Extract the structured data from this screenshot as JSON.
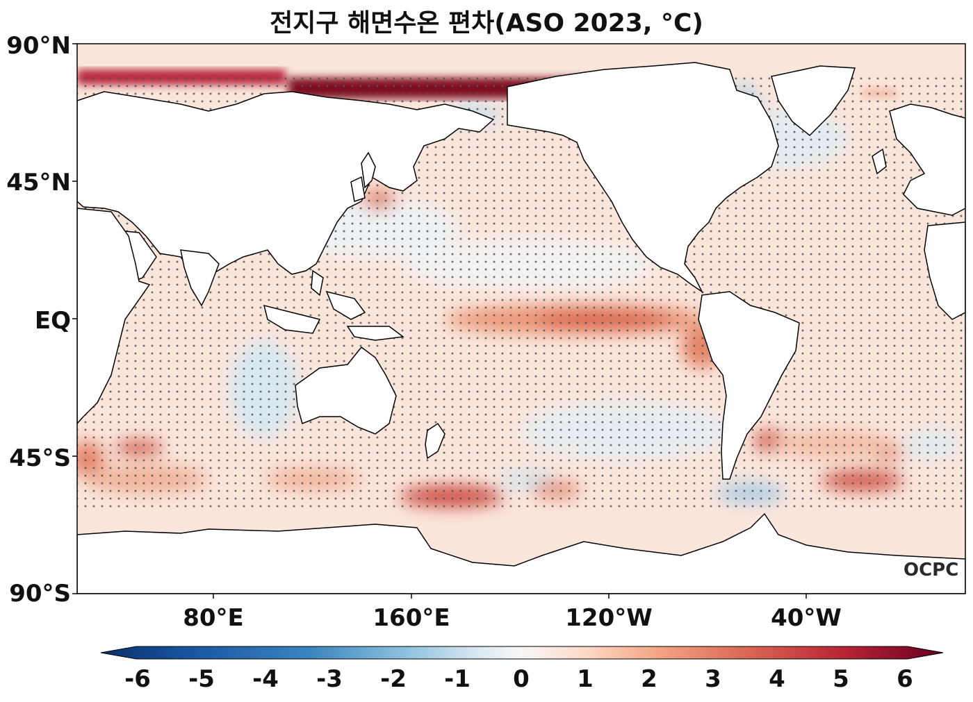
{
  "title": "전지구 해면수온 편차(ASO 2023, °C)",
  "latitude_labels": [
    "90°N",
    "45°N",
    "EQ",
    "45°S",
    "90°S"
  ],
  "longitude_labels": [
    "80°E",
    "160°E",
    "120°W",
    "40°W"
  ],
  "colorbar": {
    "ticks": [
      "-6",
      "-5",
      "-4",
      "-3",
      "-2",
      "-1",
      "0",
      "1",
      "2",
      "3",
      "4",
      "5",
      "6"
    ],
    "range": [
      -6,
      6
    ],
    "colormap": "RdBu_r",
    "extend": "both"
  },
  "credit": "OCPC",
  "colors": {
    "strong_warm": "#8b0a1f",
    "warm": "#e3775f",
    "light_warm": "#fbd6c3",
    "neutral": "#f7f6f4",
    "light_cool": "#cfe4ef",
    "cool": "#5b9ac7",
    "strong_cool": "#0b3e7a",
    "stipple": "#555555",
    "coast": "#000000"
  }
}
